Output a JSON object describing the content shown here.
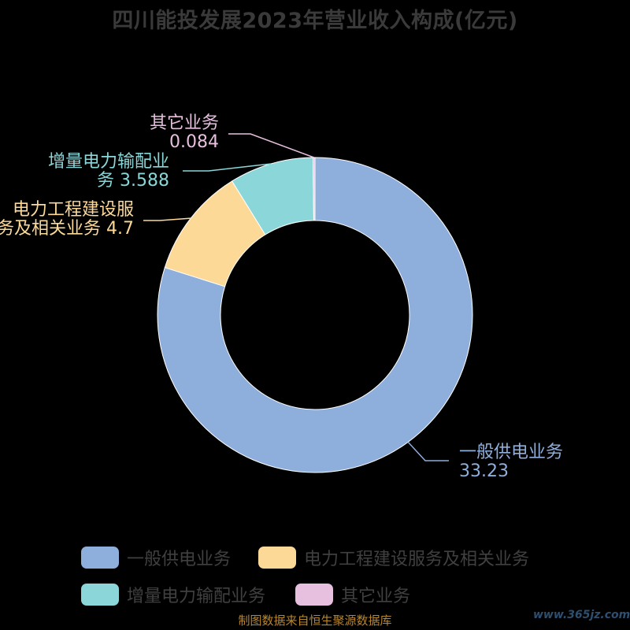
{
  "title": "四川能投发展2023年营业收入构成(亿元)",
  "source_note": "制图数据来自恒生聚源数据库",
  "watermark": "www.365jz.com",
  "chart_data": {
    "type": "pie",
    "title": "四川能投发展2023年营业收入构成(亿元)",
    "categories": [
      "一般供电业务",
      "电力工程建设服务及相关业务",
      "增量电力输配业务",
      "其它业务"
    ],
    "values": [
      33.23,
      4.7,
      3.588,
      0.084
    ],
    "colors": [
      "#8eaedb",
      "#fdd998",
      "#8ad6d8",
      "#e7bfdf"
    ],
    "labels": [
      {
        "lines": [
          "一般供电业务",
          "33.23"
        ]
      },
      {
        "lines": [
          "电力工程建设服",
          "务及相关业务 4.7"
        ]
      },
      {
        "lines": [
          "增量电力输配业",
          "务 3.588"
        ]
      },
      {
        "lines": [
          "其它业务",
          "0.084"
        ]
      }
    ],
    "legend_position": "bottom"
  }
}
